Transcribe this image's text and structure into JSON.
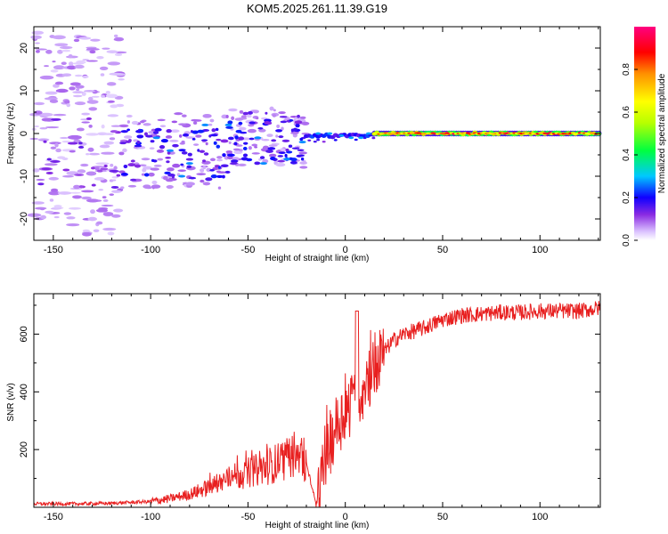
{
  "title": "KOM5.2025.261.11.39.G19",
  "chart_data": [
    {
      "type": "heatmap",
      "xlabel": "Height of straight line (km)",
      "ylabel": "Frequency (Hz)",
      "xlim": [
        -160,
        131
      ],
      "ylim": [
        -25,
        25
      ],
      "xticks": [
        -150,
        -100,
        -50,
        0,
        50,
        100
      ],
      "yticks": [
        -20,
        -10,
        0,
        10,
        20
      ],
      "colorbar": {
        "label": "Normalized spectral amplitude",
        "range": [
          0,
          1
        ],
        "ticks": [
          "0.0",
          "0.2",
          "0.4",
          "0.6",
          "0.8"
        ],
        "tick_values": [
          0,
          0.2,
          0.4,
          0.6,
          0.8
        ]
      },
      "colormap": [
        "#ffffff",
        "#cc88ff",
        "#6600ff",
        "#0000ff",
        "#00c8ff",
        "#00ff40",
        "#c0ff00",
        "#ffff00",
        "#ff8000",
        "#ff0000",
        "#ff0080"
      ],
      "features": [
        {
          "segment": "sparse noise",
          "x_range": [
            -160,
            -115
          ],
          "freq_range": [
            -24,
            24
          ],
          "amplitude": 0.05
        },
        {
          "segment": "scattered noise",
          "x_range": [
            -115,
            -20
          ],
          "freq_range": [
            -12,
            8
          ],
          "amplitude": 0.15
        },
        {
          "segment": "onset",
          "x_range": [
            -20,
            15
          ],
          "freq_range": [
            -2,
            1
          ],
          "amplitude": 0.3
        },
        {
          "segment": "steady carrier",
          "x_range": [
            15,
            131
          ],
          "freq_range": [
            -1,
            1
          ],
          "amplitude": 0.85
        }
      ]
    },
    {
      "type": "line",
      "xlabel": "Height of straight line (km)",
      "ylabel": "SNR (v/v)",
      "xlim": [
        -160,
        131
      ],
      "ylim": [
        0,
        740
      ],
      "xticks": [
        -150,
        -100,
        -50,
        0,
        50,
        100
      ],
      "yticks": [
        200,
        400,
        600
      ],
      "color": "#e82020",
      "series": [
        {
          "name": "SNR",
          "x": [
            -160,
            -140,
            -120,
            -100,
            -90,
            -80,
            -70,
            -60,
            -50,
            -40,
            -30,
            -25,
            -20,
            -15,
            -10,
            -5,
            0,
            5,
            10,
            15,
            20,
            25,
            30,
            40,
            50,
            60,
            70,
            80,
            90,
            100,
            110,
            120,
            131
          ],
          "y": [
            12,
            12,
            14,
            20,
            30,
            45,
            70,
            100,
            120,
            140,
            170,
            190,
            150,
            5,
            170,
            280,
            330,
            380,
            400,
            480,
            540,
            580,
            600,
            620,
            650,
            665,
            670,
            675,
            675,
            680,
            680,
            680,
            690
          ]
        }
      ]
    }
  ]
}
